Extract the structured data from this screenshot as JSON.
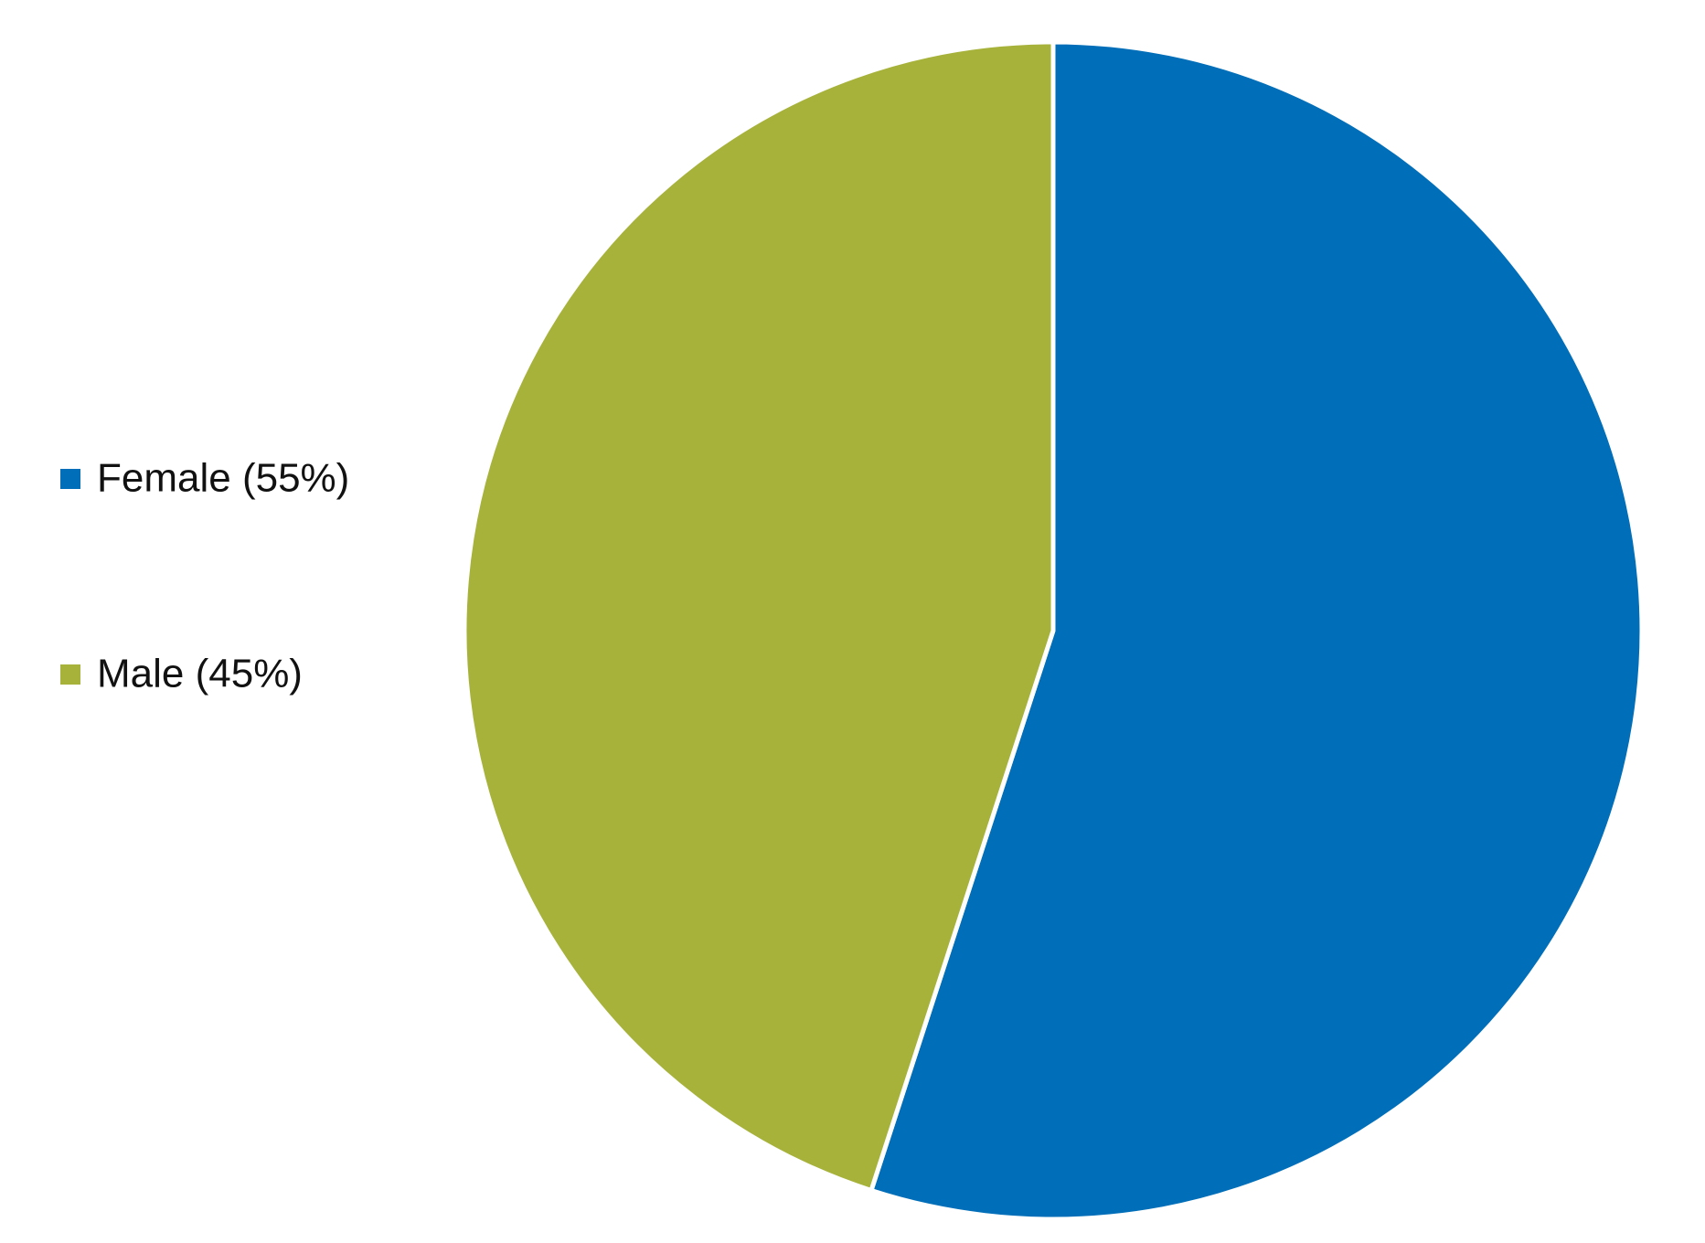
{
  "chart_data": {
    "type": "pie",
    "categories": [
      "Female (55%)",
      "Male (45%)"
    ],
    "values": [
      55,
      45
    ],
    "colors": [
      "#006eb8",
      "#a6b23a"
    ],
    "legend": "left"
  }
}
